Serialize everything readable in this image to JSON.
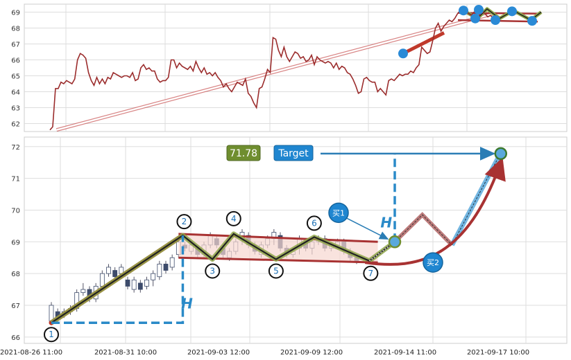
{
  "chart_data": [
    {
      "type": "line",
      "panel": "top",
      "ylim": [
        61.5,
        69.5
      ],
      "yticks": [
        62,
        63,
        64,
        65,
        66,
        67,
        68,
        69
      ],
      "grid": true,
      "series": [
        {
          "values": [
            61.6,
            61.8,
            64.2,
            64.2,
            64.6,
            64.5,
            64.7,
            64.6,
            64.5,
            64.8,
            66.0,
            66.4,
            66.3,
            66.1,
            65.2,
            64.7,
            64.4,
            64.9,
            64.5,
            64.8,
            64.5,
            64.9,
            64.8,
            65.2,
            65.1,
            65.0,
            64.9,
            65.0,
            65.0,
            64.9,
            65.2,
            64.7,
            64.8,
            65.5,
            65.7,
            65.4,
            65.5,
            65.3,
            65.3,
            64.8,
            64.6,
            64.7,
            64.7,
            64.9,
            66.0,
            66.0,
            65.5,
            65.8,
            65.6,
            65.5,
            65.4,
            65.6,
            65.3,
            65.9,
            65.5,
            65.2,
            65.5,
            65.1,
            65.2,
            65.0,
            65.2,
            64.9,
            64.7,
            64.3,
            64.5,
            64.2,
            64.0,
            64.3,
            64.6,
            64.5,
            64.4,
            64.8,
            63.9,
            63.7,
            63.3,
            63.0,
            64.2,
            64.3,
            64.8,
            65.4,
            65.2,
            67.4,
            67.3,
            66.6,
            66.2,
            66.8,
            66.2,
            65.9,
            66.2,
            66.5,
            66.4,
            66.1,
            66.2,
            65.9,
            66.0,
            66.3,
            65.7,
            66.2,
            66.0,
            65.9,
            65.8,
            65.9,
            65.8,
            65.5,
            65.8,
            65.4,
            65.6,
            65.5,
            65.2,
            65.1,
            64.8,
            64.4,
            63.9,
            64.0,
            64.8,
            64.9,
            64.7,
            64.6,
            64.6,
            64.0,
            64.2,
            64.0,
            63.8,
            64.7,
            64.8,
            64.7,
            64.9,
            65.1,
            65.0,
            65.1,
            65.1,
            65.3,
            65.2,
            65.5,
            65.7,
            66.8,
            66.6,
            66.4,
            66.5,
            67.2,
            68.0,
            68.3,
            67.8,
            68.1,
            68.3,
            68.5,
            68.4,
            68.6,
            68.9,
            69.1,
            69.0,
            69.2,
            68.9,
            68.8,
            69.0,
            69.1,
            68.8,
            69.0,
            68.9,
            68.7,
            68.8,
            68.6
          ]
        }
      ],
      "pattern": {
        "support_line": [
          [
            0.2,
            61.6
          ],
          [
            13.5,
            68.9
          ]
        ],
        "upper_line": [
          [
            11.3,
            68.95
          ],
          [
            14.8,
            68.9
          ]
        ],
        "lower_line": [
          [
            11.3,
            68.5
          ],
          [
            14.8,
            68.4
          ]
        ],
        "trend_segment": [
          [
            11.2,
            66.4
          ],
          [
            12.2,
            67.7
          ]
        ],
        "zigzag": [
          [
            12.0,
            69.1
          ],
          [
            12.6,
            68.6
          ],
          [
            12.9,
            69.2
          ],
          [
            13.5,
            68.6
          ],
          [
            14.2,
            69.1
          ],
          [
            14.7,
            68.5
          ],
          [
            14.9,
            69.0
          ]
        ],
        "markers": [
          [
            11.2,
            66.4
          ],
          [
            12.05,
            69.1
          ],
          [
            12.35,
            68.6
          ],
          [
            12.5,
            69.15
          ],
          [
            13.0,
            68.5
          ],
          [
            13.4,
            69.05
          ],
          [
            13.95,
            68.45
          ]
        ]
      }
    },
    {
      "type": "candlestick",
      "panel": "bottom",
      "ylim": [
        65.8,
        72.3
      ],
      "yticks": [
        66,
        67,
        68,
        69,
        70,
        71,
        72
      ],
      "grid": true,
      "categories": [
        "2021-08-26 11:00",
        "2021-08-31 10:00",
        "2021-09-03 12:00",
        "2021-09-09 12:00",
        "2021-09-14 11:00",
        "2021-09-17 10:00"
      ],
      "candles": [
        [
          0.0,
          66.5,
          67.0,
          66.4,
          67.1
        ],
        [
          0.15,
          66.8,
          66.6,
          66.5,
          66.9
        ],
        [
          0.3,
          66.7,
          66.8,
          66.6,
          66.9
        ],
        [
          0.45,
          66.8,
          66.9,
          66.7,
          67.0
        ],
        [
          0.6,
          66.9,
          67.4,
          66.8,
          67.5
        ],
        [
          0.75,
          67.4,
          67.5,
          67.3,
          67.7
        ],
        [
          0.9,
          67.5,
          67.2,
          67.1,
          67.6
        ],
        [
          1.05,
          67.2,
          67.6,
          67.1,
          67.7
        ],
        [
          1.2,
          67.6,
          68.0,
          67.5,
          68.1
        ],
        [
          1.35,
          68.0,
          68.2,
          67.9,
          68.3
        ],
        [
          1.5,
          68.1,
          67.9,
          67.8,
          68.2
        ],
        [
          1.65,
          68.0,
          68.2,
          67.9,
          68.3
        ],
        [
          1.8,
          67.8,
          67.6,
          67.5,
          67.9
        ],
        [
          1.95,
          67.5,
          67.8,
          67.4,
          67.9
        ],
        [
          2.1,
          67.7,
          67.5,
          67.4,
          67.8
        ],
        [
          2.25,
          67.6,
          67.8,
          67.5,
          67.9
        ],
        [
          2.4,
          67.8,
          68.0,
          67.6,
          68.1
        ],
        [
          2.55,
          67.9,
          68.3,
          67.8,
          68.4
        ],
        [
          2.7,
          68.3,
          68.1,
          68.0,
          68.4
        ],
        [
          2.85,
          68.2,
          68.5,
          68.1,
          68.6
        ],
        [
          3.0,
          68.6,
          69.0,
          68.5,
          69.1
        ],
        [
          3.15,
          68.9,
          68.8,
          68.7,
          69.0
        ],
        [
          3.3,
          68.7,
          68.9,
          68.6,
          69.0
        ],
        [
          3.45,
          68.8,
          68.6,
          68.5,
          68.9
        ],
        [
          3.6,
          68.6,
          68.9,
          68.5,
          69.0
        ],
        [
          3.75,
          68.9,
          69.2,
          68.8,
          69.3
        ],
        [
          3.9,
          69.1,
          68.9,
          68.8,
          69.2
        ],
        [
          4.05,
          68.8,
          68.6,
          68.5,
          68.9
        ],
        [
          4.2,
          68.5,
          68.7,
          68.4,
          68.8
        ],
        [
          4.35,
          68.7,
          69.0,
          68.6,
          69.1
        ],
        [
          4.5,
          69.1,
          69.3,
          68.9,
          69.4
        ],
        [
          4.65,
          69.2,
          68.9,
          68.8,
          69.3
        ],
        [
          4.8,
          68.9,
          68.7,
          68.6,
          69.0
        ],
        [
          4.95,
          68.6,
          68.9,
          68.5,
          69.0
        ],
        [
          5.1,
          68.9,
          69.1,
          68.8,
          69.2
        ],
        [
          5.25,
          69.1,
          69.3,
          68.9,
          69.4
        ],
        [
          5.4,
          69.2,
          68.8,
          68.7,
          69.3
        ],
        [
          5.55,
          68.8,
          68.6,
          68.5,
          68.9
        ],
        [
          5.7,
          68.6,
          68.7,
          68.5,
          68.8
        ],
        [
          5.85,
          68.8,
          69.1,
          68.6,
          69.2
        ],
        [
          6.0,
          69.0,
          68.8,
          68.7,
          69.1
        ],
        [
          6.15,
          68.8,
          69.0,
          68.6,
          69.1
        ],
        [
          6.3,
          69.0,
          69.1,
          68.9,
          69.2
        ],
        [
          6.45,
          69.1,
          68.8,
          68.7,
          69.2
        ],
        [
          6.6,
          68.8,
          68.9,
          68.7,
          69.0
        ],
        [
          6.75,
          68.9,
          69.0,
          68.8,
          69.1
        ],
        [
          6.9,
          69.0,
          68.7,
          68.6,
          69.1
        ],
        [
          7.05,
          68.7,
          68.5,
          68.4,
          68.8
        ],
        [
          7.2,
          68.5,
          68.4,
          68.3,
          68.6
        ]
      ],
      "pattern": {
        "flagpole": [
          [
            0.0,
            66.45
          ],
          [
            3.1,
            69.2
          ]
        ],
        "upper_line": [
          [
            3.0,
            69.25
          ],
          [
            7.7,
            69.0
          ]
        ],
        "lower_line": [
          [
            3.0,
            68.5
          ],
          [
            7.7,
            68.35
          ]
        ],
        "zigzag": [
          [
            0.0,
            66.45
          ],
          [
            3.1,
            69.2
          ],
          [
            3.8,
            68.45
          ],
          [
            4.3,
            69.25
          ],
          [
            5.3,
            68.45
          ],
          [
            6.2,
            69.15
          ],
          [
            7.5,
            68.4
          ],
          [
            8.1,
            69.0
          ]
        ],
        "points": [
          {
            "label": "1",
            "x": 0.0,
            "y": 66.45
          },
          {
            "label": "2",
            "x": 3.1,
            "y": 69.2
          },
          {
            "label": "3",
            "x": 3.8,
            "y": 68.45
          },
          {
            "label": "4",
            "x": 4.3,
            "y": 69.25
          },
          {
            "label": "5",
            "x": 5.3,
            "y": 68.45
          },
          {
            "label": "6",
            "x": 6.2,
            "y": 69.15
          },
          {
            "label": "7",
            "x": 7.5,
            "y": 68.4
          }
        ],
        "projection": [
          [
            8.1,
            69.0
          ],
          [
            8.75,
            69.85
          ],
          [
            9.45,
            68.9
          ],
          [
            10.6,
            71.8
          ]
        ],
        "curve": [
          [
            7.4,
            68.35
          ],
          [
            8.7,
            68.1
          ],
          [
            9.8,
            68.5
          ],
          [
            10.6,
            71.5
          ]
        ],
        "target_level": 71.78,
        "breakout": {
          "x": 8.1,
          "y": 69.0
        },
        "buy1": {
          "label": "买1",
          "x": 7.2,
          "y": 69.85
        },
        "buy2": {
          "label": "买2",
          "x": 9.0,
          "y": 68.35
        },
        "h_labels": [
          {
            "label": "H",
            "x": 3.2,
            "y": 66.9
          },
          {
            "label": "H",
            "x": 7.9,
            "y": 69.45
          }
        ]
      },
      "badges": {
        "value": "71.78",
        "target": "Target"
      }
    }
  ]
}
